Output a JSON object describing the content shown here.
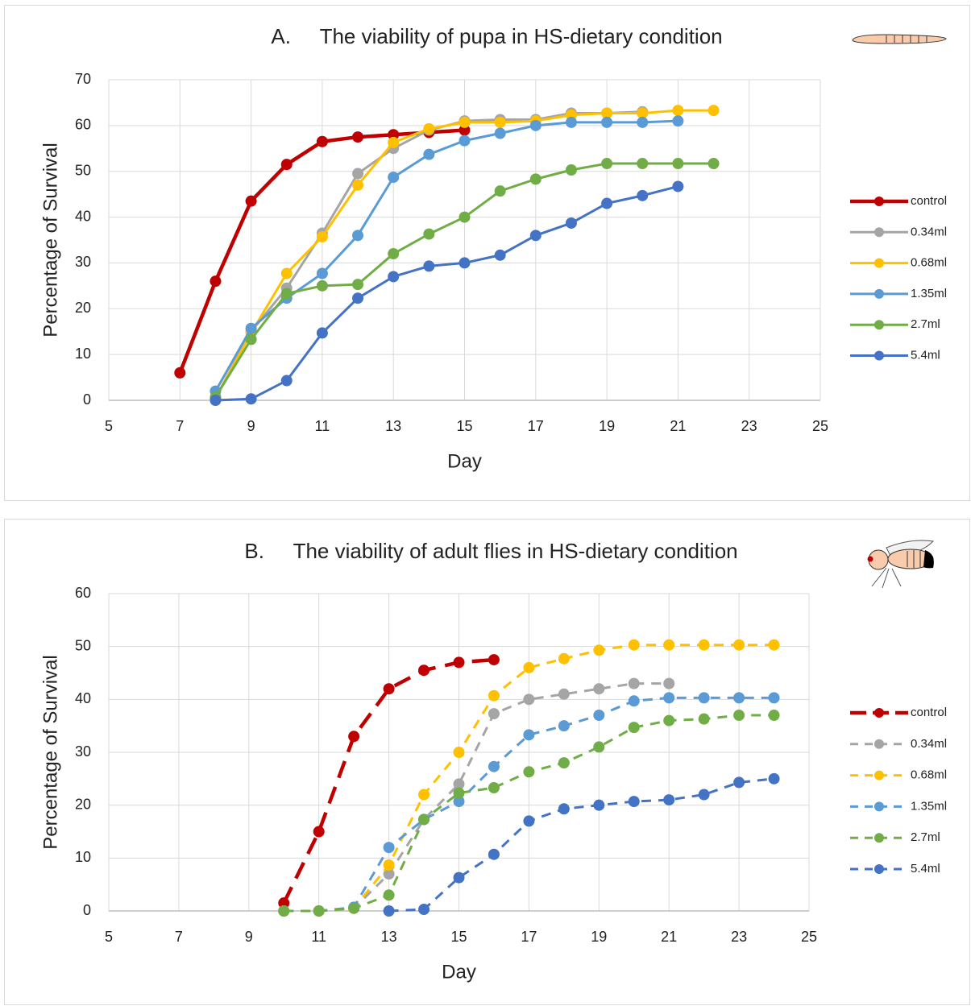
{
  "chart_data": [
    {
      "type": "line",
      "title": "A.     The viability of pupa in HS-dietary condition",
      "x_label": "Day",
      "y_label": "Percentage of Survival",
      "xlim": [
        5,
        25
      ],
      "xticks": [
        5,
        7,
        9,
        11,
        13,
        15,
        17,
        19,
        21,
        23,
        25
      ],
      "ylim": [
        0,
        70
      ],
      "yticks": [
        0,
        10,
        20,
        30,
        40,
        50,
        60,
        70
      ],
      "grid": true,
      "legend": "right",
      "line_style": "solid",
      "series": [
        {
          "name": "control",
          "color": "#c00000",
          "x": [
            7,
            8,
            9,
            10,
            11,
            12,
            13,
            14,
            15
          ],
          "values": [
            6,
            26,
            43.5,
            51.5,
            56.5,
            57.5,
            58,
            58.5,
            59
          ]
        },
        {
          "name": "0.34ml",
          "color": "#a5a5a5",
          "x": [
            8,
            9,
            10,
            11,
            12,
            13,
            14,
            15,
            16,
            17,
            18,
            19,
            20
          ],
          "values": [
            0.5,
            15,
            24.5,
            36.5,
            49.5,
            55,
            59,
            61,
            61.3,
            61.3,
            62.7,
            62.7,
            63
          ]
        },
        {
          "name": "0.68ml",
          "color": "#ffc000",
          "x": [
            8,
            9,
            10,
            11,
            12,
            13,
            14,
            15,
            16,
            17,
            18,
            19,
            20,
            21,
            22
          ],
          "values": [
            0.5,
            14.7,
            27.7,
            35.7,
            47,
            56.3,
            59.3,
            60.7,
            60.7,
            61,
            62.3,
            62.7,
            62.7,
            63.3,
            63.3
          ]
        },
        {
          "name": "1.35ml",
          "color": "#5b9bd5",
          "x": [
            8,
            9,
            10,
            11,
            12,
            13,
            14,
            15,
            16,
            17,
            18,
            19,
            20,
            21
          ],
          "values": [
            2,
            15.7,
            22.3,
            27.7,
            36,
            48.7,
            53.7,
            56.7,
            58.3,
            60,
            60.7,
            60.7,
            60.7,
            61
          ]
        },
        {
          "name": "2.7ml",
          "color": "#70ad47",
          "x": [
            8,
            9,
            10,
            11,
            12,
            13,
            14,
            15,
            16,
            17,
            18,
            19,
            20,
            21,
            22
          ],
          "values": [
            0.7,
            13.3,
            23.3,
            25,
            25.3,
            32,
            36.3,
            40,
            45.7,
            48.3,
            50.3,
            51.7,
            51.7,
            51.7,
            51.7
          ]
        },
        {
          "name": "5.4ml",
          "color": "#4472c4",
          "x": [
            8,
            9,
            10,
            11,
            12,
            13,
            14,
            15,
            16,
            17,
            18,
            19,
            20,
            21
          ],
          "values": [
            0,
            0.3,
            4.3,
            14.7,
            22.3,
            27,
            29.3,
            30,
            31.7,
            36,
            38.7,
            43,
            44.7,
            46.7
          ]
        }
      ]
    },
    {
      "type": "line",
      "title": "B.     The viability of adult flies in HS-dietary condition",
      "x_label": "Day",
      "y_label": "Percentage of Survival",
      "xlim": [
        5,
        25
      ],
      "xticks": [
        5,
        7,
        9,
        11,
        13,
        15,
        17,
        19,
        21,
        23,
        25
      ],
      "ylim": [
        0,
        60
      ],
      "yticks": [
        0,
        10,
        20,
        30,
        40,
        50,
        60
      ],
      "grid": true,
      "legend": "right",
      "line_style": "dashed",
      "series": [
        {
          "name": "control",
          "color": "#c00000",
          "x": [
            10,
            11,
            12,
            13,
            14,
            15,
            16
          ],
          "values": [
            1.5,
            15,
            33,
            42,
            45.5,
            47,
            47.5
          ]
        },
        {
          "name": "0.34ml",
          "color": "#a5a5a5",
          "x": [
            10,
            11,
            12,
            13,
            14,
            15,
            16,
            17,
            18,
            19,
            20,
            21
          ],
          "values": [
            0,
            0,
            0.5,
            7,
            17.3,
            24,
            37.3,
            40,
            41,
            42,
            43,
            43
          ]
        },
        {
          "name": "0.68ml",
          "color": "#ffc000",
          "x": [
            10,
            11,
            12,
            13,
            14,
            15,
            16,
            17,
            18,
            19,
            20,
            21,
            22,
            23,
            24
          ],
          "values": [
            0,
            0,
            0.5,
            8.7,
            22,
            30,
            40.7,
            46,
            47.7,
            49.3,
            50.3,
            50.3,
            50.3,
            50.3,
            50.3
          ]
        },
        {
          "name": "1.35ml",
          "color": "#5b9bd5",
          "x": [
            10,
            11,
            12,
            13,
            14,
            15,
            16,
            17,
            18,
            19,
            20,
            21,
            22,
            23,
            24
          ],
          "values": [
            0,
            0,
            0.7,
            12,
            17.3,
            20.7,
            27.3,
            33.3,
            35,
            37,
            39.7,
            40.3,
            40.3,
            40.3,
            40.3
          ]
        },
        {
          "name": "2.7ml",
          "color": "#70ad47",
          "x": [
            10,
            11,
            12,
            13,
            14,
            15,
            16,
            17,
            18,
            19,
            20,
            21,
            22,
            23,
            24
          ],
          "values": [
            0,
            0,
            0.5,
            3,
            17.3,
            22.3,
            23.3,
            26.3,
            28,
            31,
            34.7,
            36,
            36.3,
            37,
            37
          ]
        },
        {
          "name": "5.4ml",
          "color": "#4472c4",
          "x": [
            13,
            14,
            15,
            16,
            17,
            18,
            19,
            20,
            21,
            22,
            23,
            24
          ],
          "values": [
            0,
            0.3,
            6.3,
            10.7,
            17,
            19.3,
            20,
            20.7,
            21,
            22,
            24.3,
            25
          ]
        }
      ]
    }
  ]
}
